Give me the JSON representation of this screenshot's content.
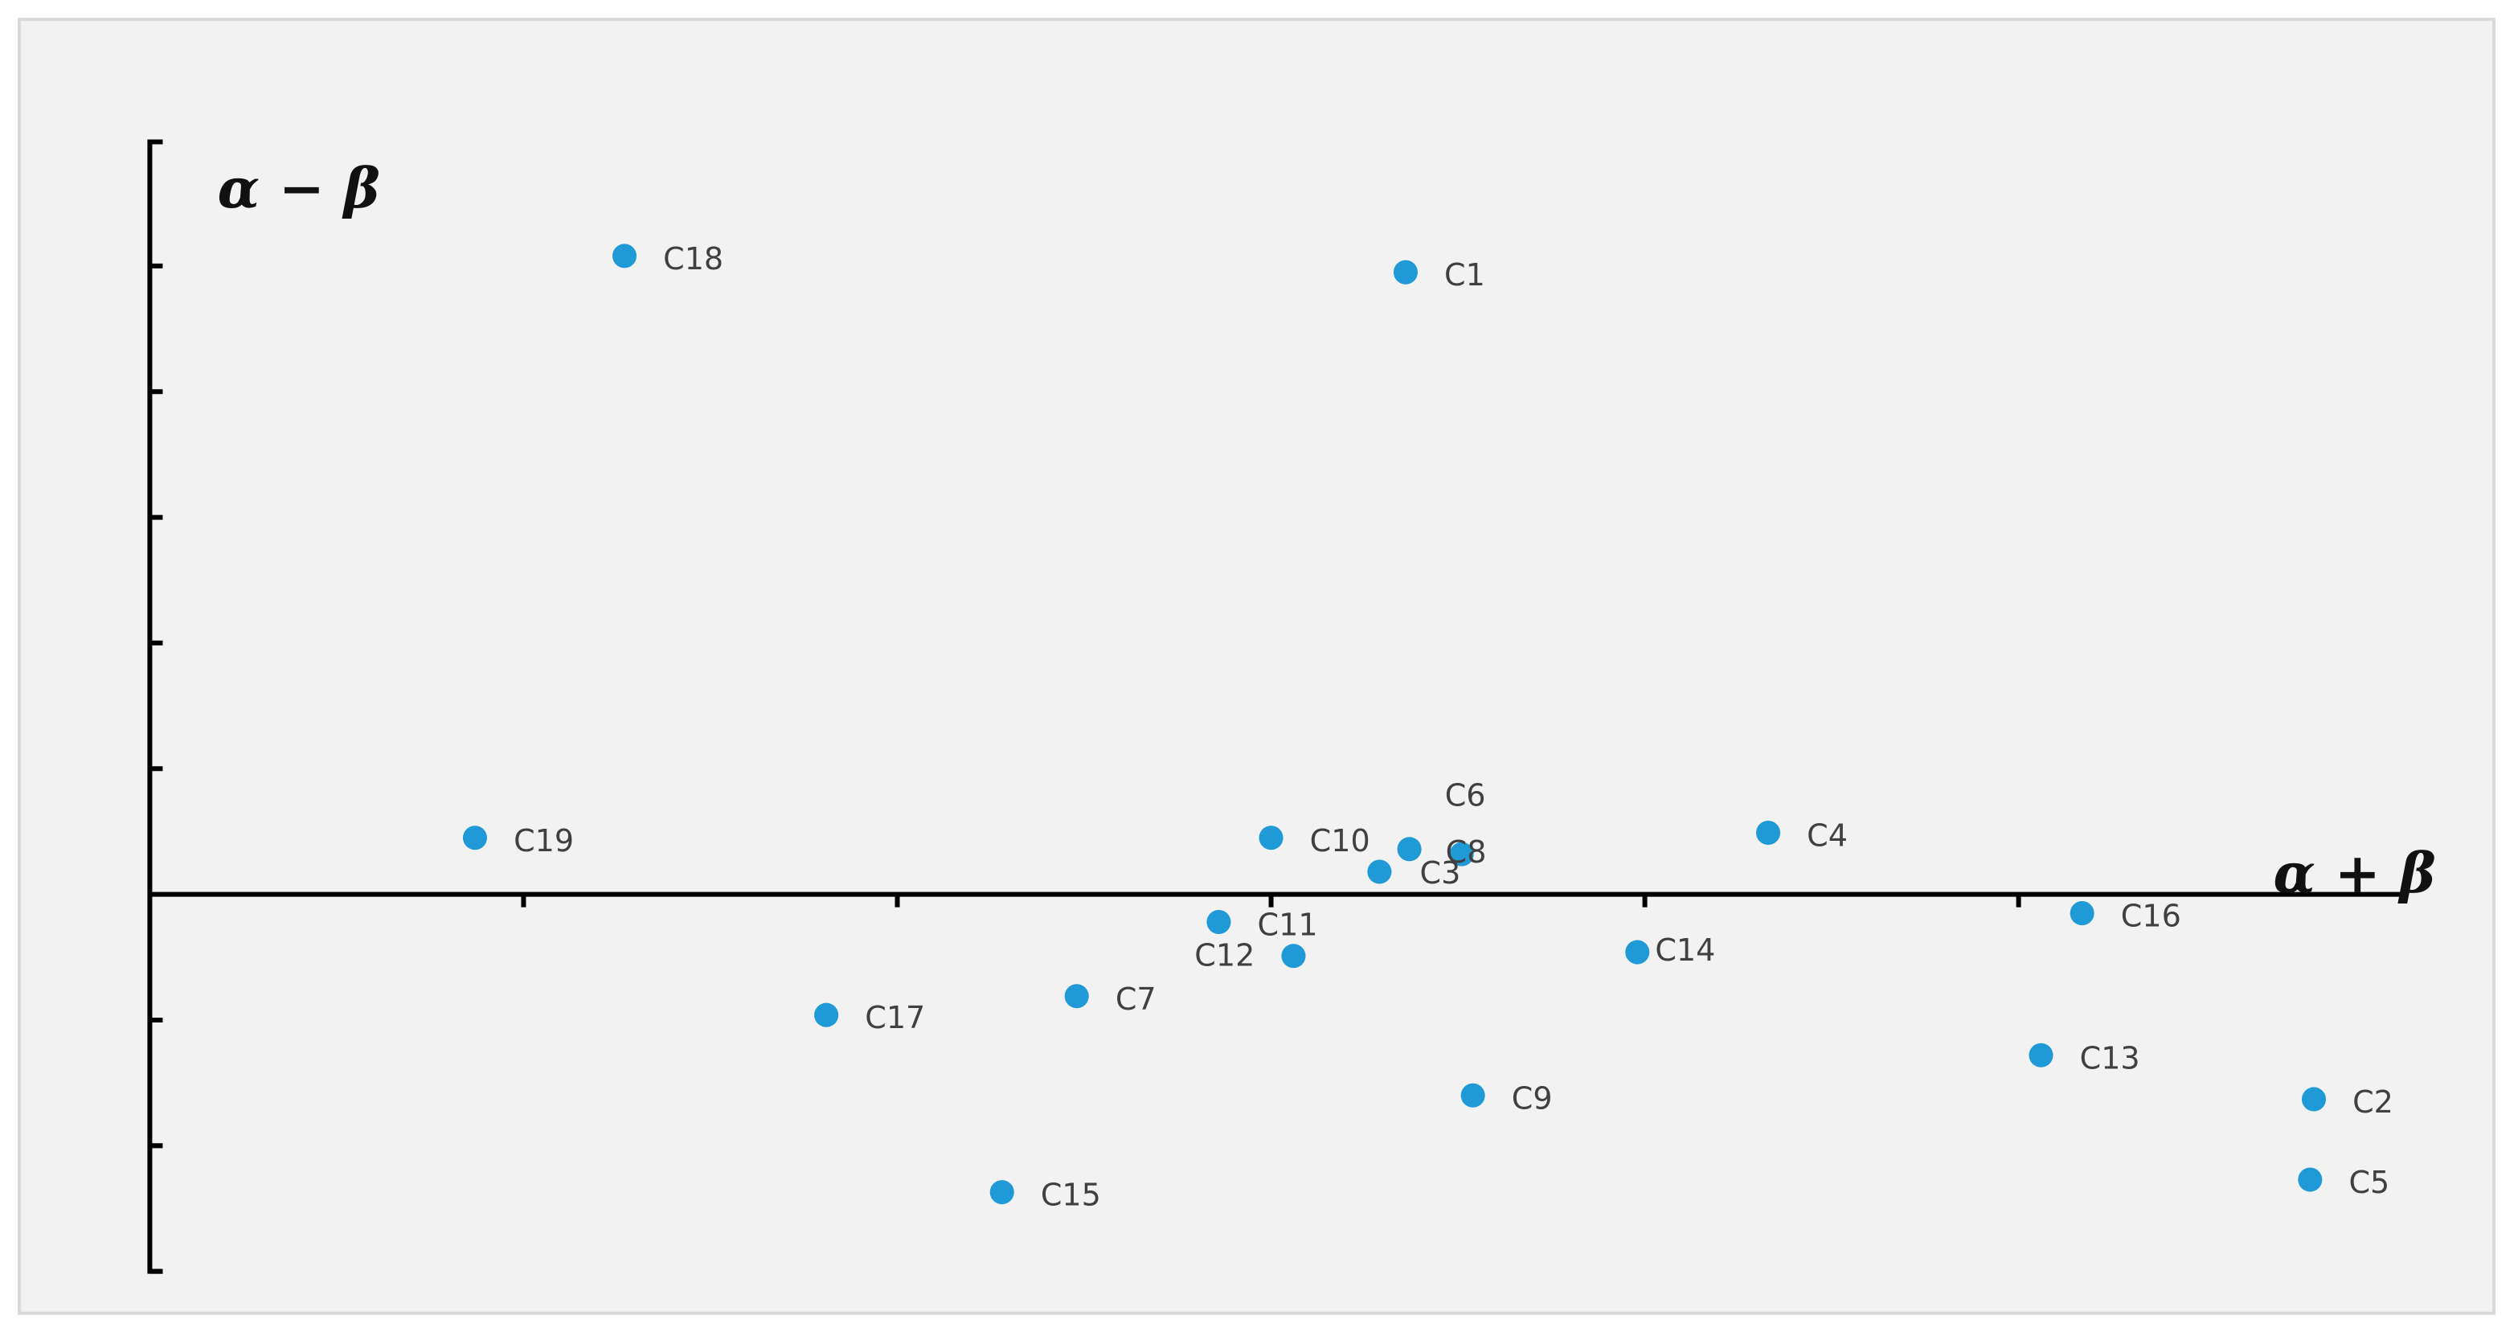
{
  "chart_data": {
    "type": "scatter",
    "x_label": "α + β",
    "y_label": "α − β",
    "labels": [
      "C18",
      "C1",
      "C19",
      "C10",
      "C6",
      "C8",
      "C3",
      "C4",
      "C11",
      "C12",
      "C14",
      "C16",
      "C17",
      "C7",
      "C13",
      "C9",
      "C2",
      "C5",
      "C15"
    ],
    "x": [
      1.27,
      3.36,
      0.87,
      3.0,
      3.37,
      3.51,
      3.29,
      4.33,
      2.86,
      3.06,
      3.98,
      5.17,
      1.81,
      2.48,
      5.06,
      3.54,
      5.79,
      5.78,
      2.28
    ],
    "values": [
      5.08,
      4.95,
      0.45,
      0.45,
      0.36,
      0.32,
      0.18,
      0.49,
      -0.22,
      -0.49,
      -0.46,
      -0.15,
      -0.96,
      -0.81,
      -1.28,
      -1.6,
      -1.63,
      -2.27,
      -2.37
    ],
    "color": "#1f9ad6",
    "xlim": [
      0,
      6
    ],
    "ylim": [
      -3,
      6
    ],
    "xticks": [
      1,
      2,
      3,
      4,
      5
    ],
    "yticks": [
      -3,
      -2,
      -1,
      1,
      2,
      3,
      4,
      5
    ],
    "grid": false
  }
}
